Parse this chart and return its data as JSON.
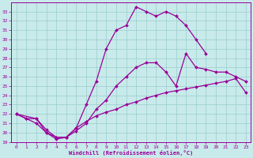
{
  "bg_color": "#c8eaea",
  "line_color": "#990099",
  "grid_color": "#99cccc",
  "xlabel": "Windchill (Refroidissement éolien,°C)",
  "ylim": [
    19,
    34
  ],
  "xlim": [
    -0.5,
    23.5
  ],
  "yticks": [
    19,
    20,
    21,
    22,
    23,
    24,
    25,
    26,
    27,
    28,
    29,
    30,
    31,
    32,
    33
  ],
  "xticks": [
    0,
    1,
    2,
    3,
    4,
    5,
    6,
    7,
    8,
    9,
    10,
    11,
    12,
    13,
    14,
    15,
    16,
    17,
    18,
    19,
    20,
    21,
    22,
    23
  ],
  "series1_x": [
    0,
    1,
    2,
    3,
    4,
    5,
    6,
    7,
    8,
    9,
    10,
    11,
    12,
    13,
    14,
    15,
    16,
    17,
    18,
    19,
    20,
    21,
    22,
    23
  ],
  "series1_y": [
    22.0,
    21.5,
    21.5,
    20.3,
    19.5,
    19.5,
    20.5,
    21.2,
    21.8,
    22.2,
    22.5,
    23.0,
    23.3,
    23.7,
    24.0,
    24.3,
    24.5,
    24.7,
    24.9,
    25.1,
    25.3,
    25.5,
    25.8,
    24.3
  ],
  "series2_x": [
    0,
    1,
    2,
    3,
    4,
    5,
    6,
    7,
    8,
    9,
    10,
    11,
    12,
    13,
    14,
    15,
    16,
    17,
    18,
    19,
    20,
    21,
    22,
    23
  ],
  "series2_y": [
    22.0,
    21.5,
    21.0,
    20.0,
    19.5,
    19.5,
    20.2,
    21.0,
    22.5,
    23.5,
    25.0,
    26.0,
    27.0,
    27.5,
    27.5,
    26.5,
    25.0,
    28.5,
    27.0,
    26.8,
    26.5,
    26.5,
    26.0,
    25.5
  ],
  "series3_x": [
    0,
    2,
    3,
    4,
    5,
    6,
    7,
    8,
    9,
    10,
    11,
    12,
    13,
    14,
    15,
    16,
    17,
    18,
    19
  ],
  "series3_y": [
    22.0,
    21.5,
    20.0,
    19.3,
    19.5,
    20.5,
    23.0,
    25.5,
    29.0,
    31.0,
    31.5,
    33.5,
    33.0,
    32.5,
    33.0,
    32.5,
    31.5,
    30.0,
    28.5
  ]
}
